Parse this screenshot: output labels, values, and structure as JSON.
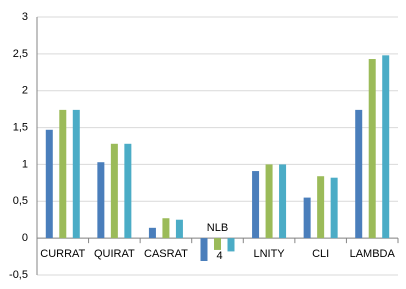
{
  "chart_data": {
    "type": "bar",
    "categories": [
      "CURRAT",
      "QUIRAT",
      "CASRAT",
      "NLB 4",
      "LNITY",
      "CLI",
      "LAMBDA"
    ],
    "series": [
      {
        "color": "#4a7ebb",
        "values": [
          1.47,
          1.03,
          0.14,
          -0.31,
          0.91,
          0.55,
          1.74
        ]
      },
      {
        "color": "#9bbb59",
        "values": [
          1.74,
          1.28,
          0.27,
          -0.16,
          1.0,
          0.84,
          2.43
        ]
      },
      {
        "color": "#4bacc6",
        "values": [
          1.74,
          1.28,
          0.25,
          -0.18,
          1.0,
          0.82,
          2.48
        ]
      }
    ],
    "ylim": [
      -0.5,
      3
    ],
    "yticks": [
      {
        "value": -0.5,
        "label": "-0,5"
      },
      0,
      {
        "value": 0.5,
        "label": "0,5"
      },
      1,
      {
        "value": 1.5,
        "label": "1,5"
      },
      2,
      {
        "value": 2.5,
        "label": "2,5"
      },
      3
    ],
    "grid": true
  }
}
